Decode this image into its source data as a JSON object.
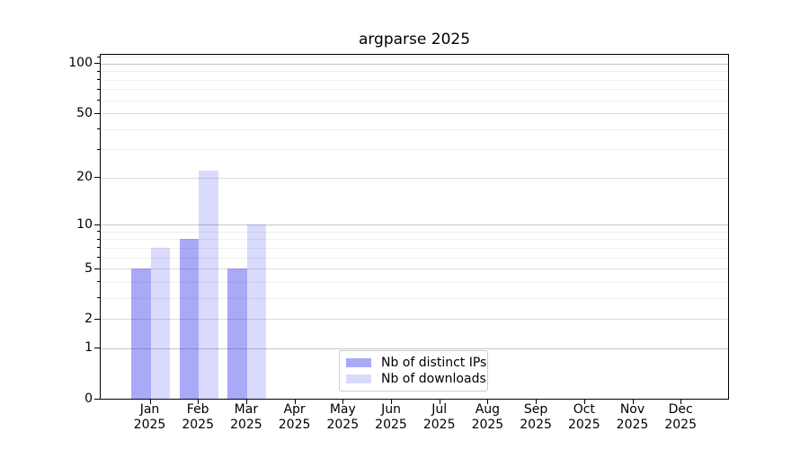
{
  "chart_data": {
    "type": "bar",
    "title": "argparse 2025",
    "categories": [
      "Jan",
      "Feb",
      "Mar",
      "Apr",
      "May",
      "Jun",
      "Jul",
      "Aug",
      "Sep",
      "Oct",
      "Nov",
      "Dec"
    ],
    "year": "2025",
    "series": [
      {
        "name": "Nb of distinct IPs",
        "color": "rgba(34,34,238,0.39)",
        "values": [
          5,
          8,
          5,
          0,
          0,
          0,
          0,
          0,
          0,
          0,
          0,
          0
        ]
      },
      {
        "name": "Nb of downloads",
        "color": "rgba(34,34,238,0.17)",
        "values": [
          7,
          22,
          10,
          0,
          0,
          0,
          0,
          0,
          0,
          0,
          0,
          0
        ]
      }
    ],
    "y_scale": "log10(1+v)",
    "y_ticks": [
      0,
      1,
      2,
      5,
      10,
      20,
      50,
      100
    ],
    "y_minor_ticks": [
      3,
      4,
      6,
      7,
      8,
      9,
      30,
      40,
      60,
      70,
      80,
      90,
      110
    ],
    "ylim": [
      0,
      113
    ],
    "grid": true,
    "legend_position": "lower center"
  },
  "colors": {
    "grid_major": "#c6c6c6",
    "grid_mid": "#dcdcdc",
    "grid_minor": "#efefef",
    "axis": "#000000",
    "bar_ips": "rgba(34,34,238,0.39)",
    "bar_downloads": "rgba(34,34,238,0.17)"
  }
}
